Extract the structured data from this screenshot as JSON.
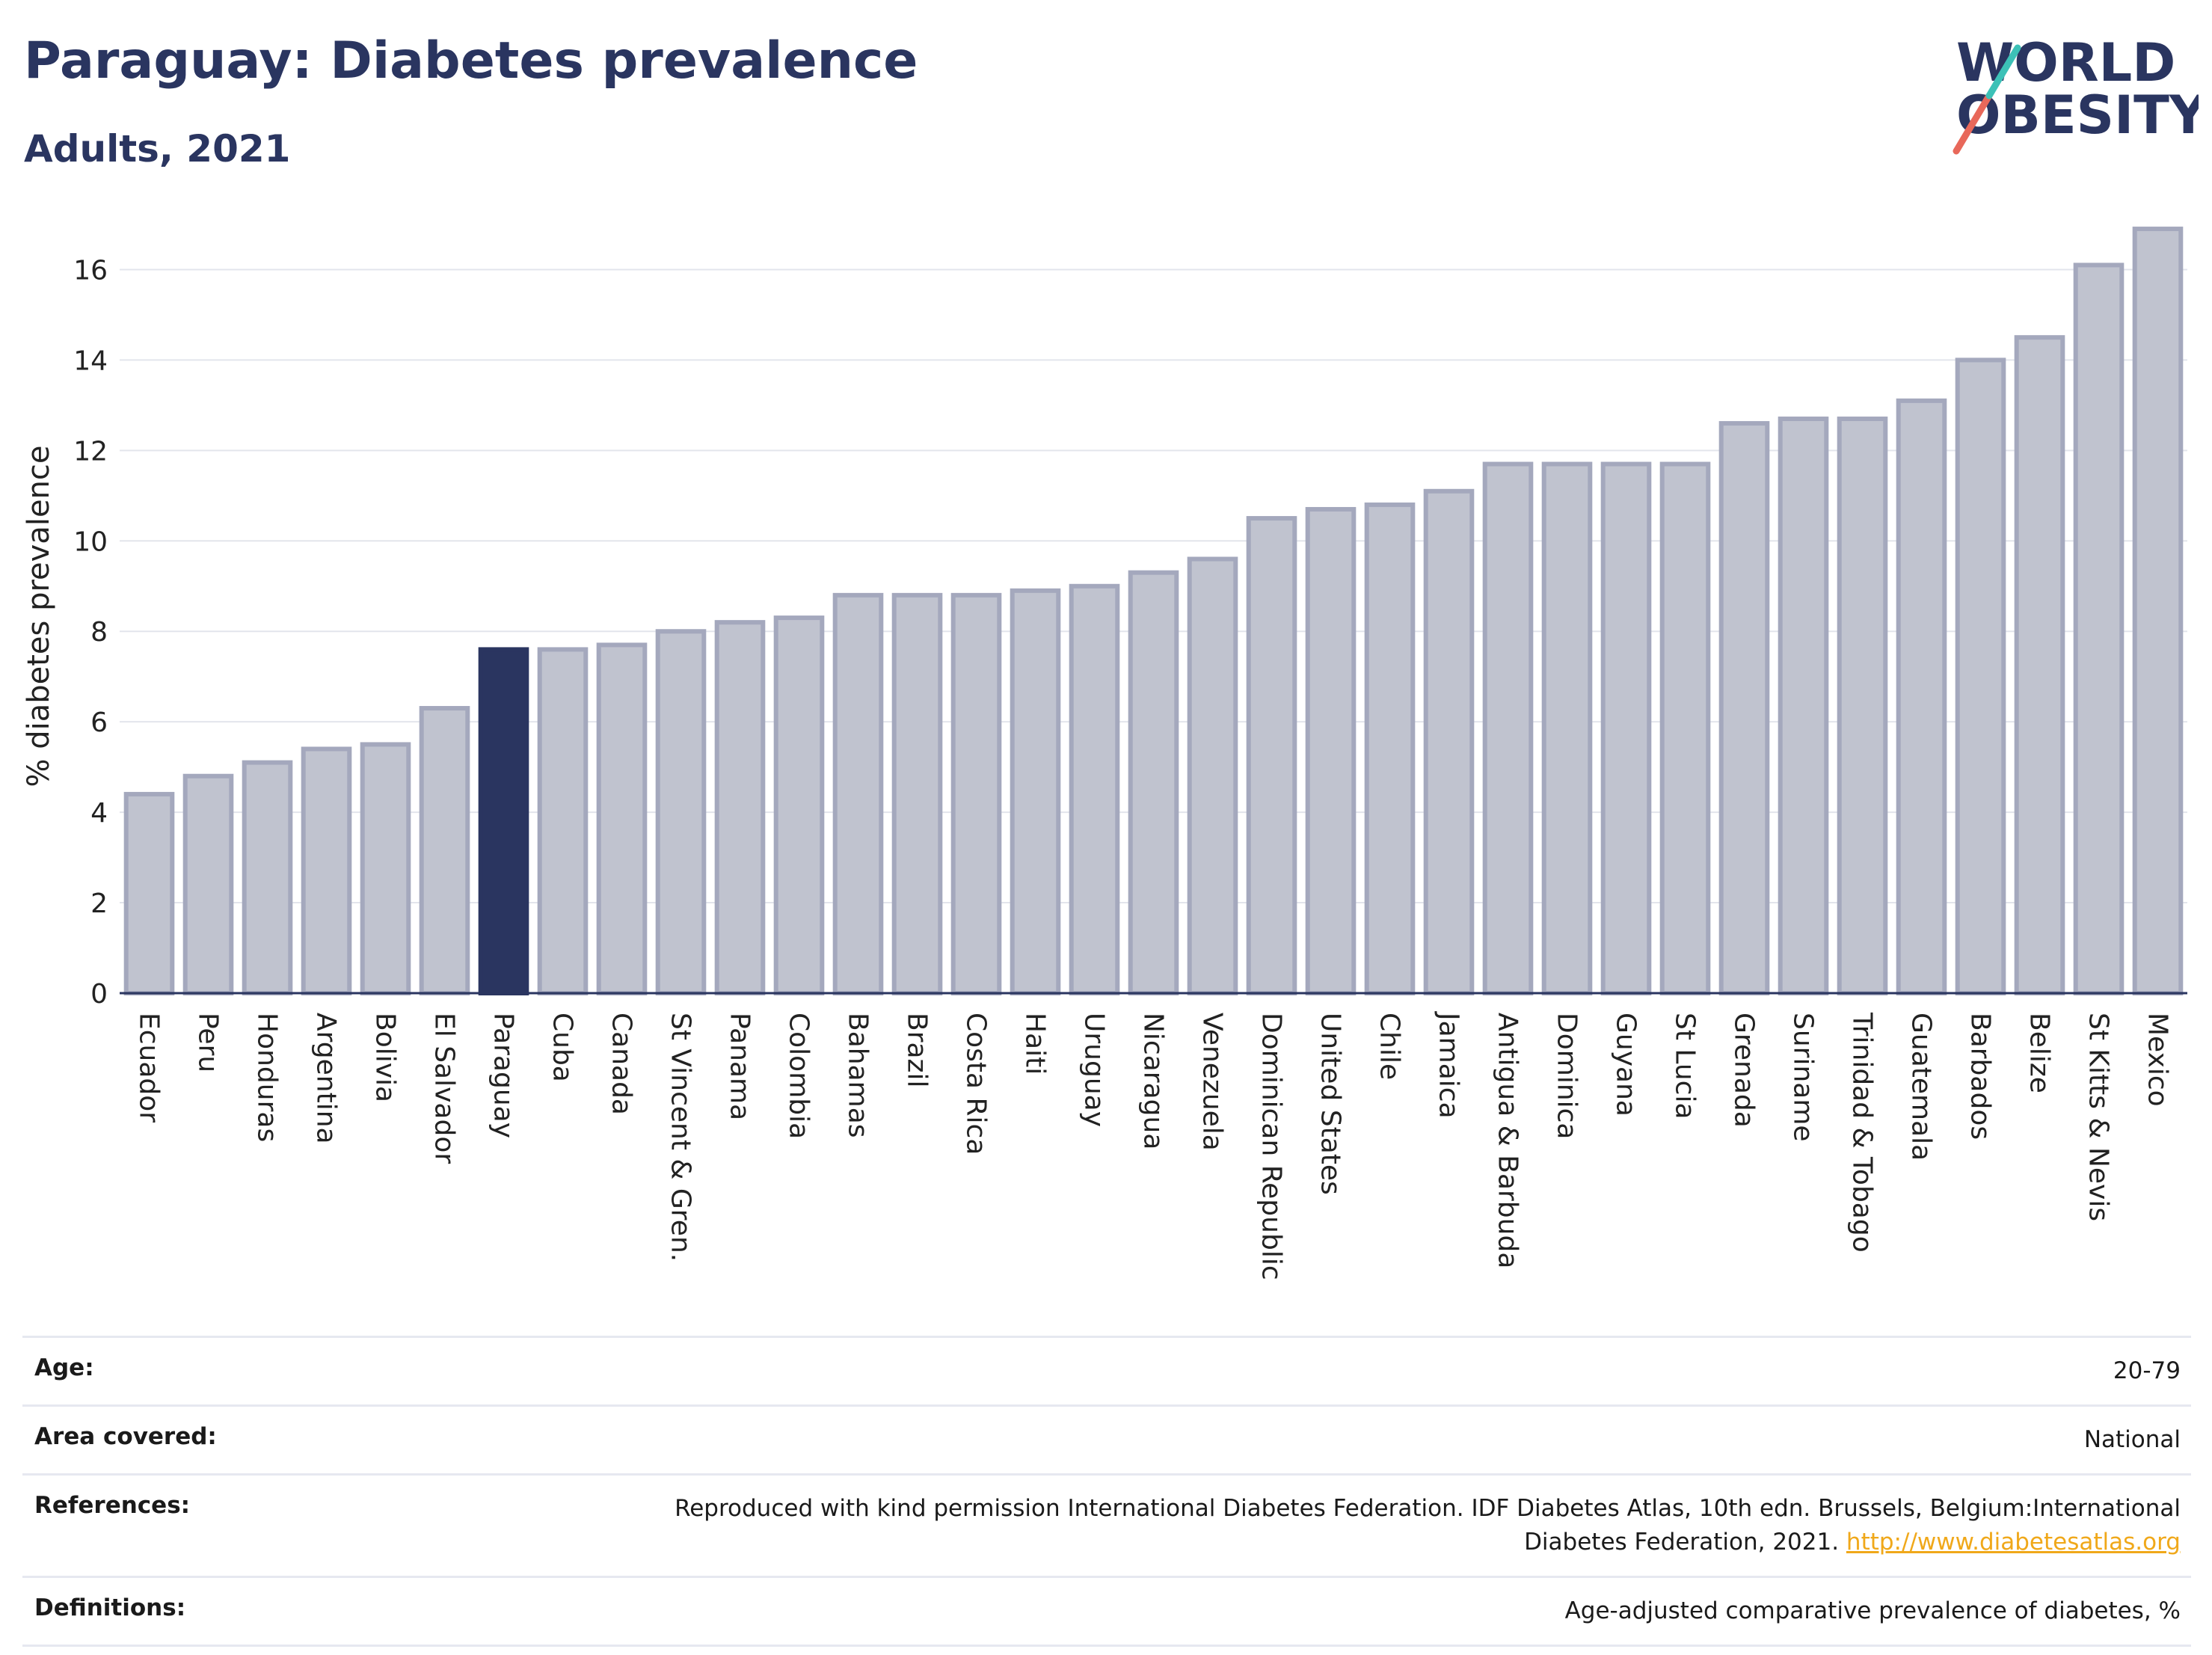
{
  "header": {
    "title": "Paraguay: Diabetes prevalence",
    "subtitle": "Adults, 2021"
  },
  "logo": {
    "line1": "WORLD",
    "line2": "OBESITY",
    "slash_colors": [
      "#3cc1b7",
      "#e8685a"
    ]
  },
  "chart_data": {
    "type": "bar",
    "title": "Paraguay: Diabetes prevalence",
    "subtitle": "Adults, 2021",
    "xlabel": "",
    "ylabel": "% diabetes prevalence",
    "ylim": [
      0,
      17
    ],
    "yticks": [
      0,
      2,
      4,
      6,
      8,
      10,
      12,
      14,
      16
    ],
    "grid": true,
    "highlight": "Paraguay",
    "colors": {
      "bar": "#c0c3cf",
      "bar_edge": "#a4a8bd",
      "highlight": "#2a3560"
    },
    "categories": [
      "Ecuador",
      "Peru",
      "Honduras",
      "Argentina",
      "Bolivia",
      "El Salvador",
      "Paraguay",
      "Cuba",
      "Canada",
      "St Vincent & Gren.",
      "Panama",
      "Colombia",
      "Bahamas",
      "Brazil",
      "Costa Rica",
      "Haiti",
      "Uruguay",
      "Nicaragua",
      "Venezuela",
      "Dominican Republic",
      "United States",
      "Chile",
      "Jamaica",
      "Antigua & Barbuda",
      "Dominica",
      "Guyana",
      "St Lucia",
      "Grenada",
      "Suriname",
      "Trinidad & Tobago",
      "Guatemala",
      "Barbados",
      "Belize",
      "St Kitts & Nevis",
      "Mexico"
    ],
    "values": [
      4.4,
      4.8,
      5.1,
      5.4,
      5.5,
      6.3,
      7.6,
      7.6,
      7.7,
      8.0,
      8.2,
      8.3,
      8.8,
      8.8,
      8.8,
      8.9,
      9.0,
      9.3,
      9.6,
      10.5,
      10.7,
      10.8,
      11.1,
      11.7,
      11.7,
      11.7,
      11.7,
      12.6,
      12.7,
      12.7,
      13.1,
      14.0,
      14.5,
      16.1,
      16.9
    ]
  },
  "info": {
    "rows": [
      {
        "label": "Age:",
        "value": "20-79"
      },
      {
        "label": "Area covered:",
        "value": "National"
      },
      {
        "label": "References:",
        "value": "Reproduced with kind permission International Diabetes Federation.  IDF Diabetes Atlas, 10th edn. Brussels, Belgium:International Diabetes Federation, 2021.",
        "link": "http://www.diabetesatlas.org"
      },
      {
        "label": "Definitions:",
        "value": "Age-adjusted comparative prevalence of diabetes, %"
      }
    ]
  }
}
